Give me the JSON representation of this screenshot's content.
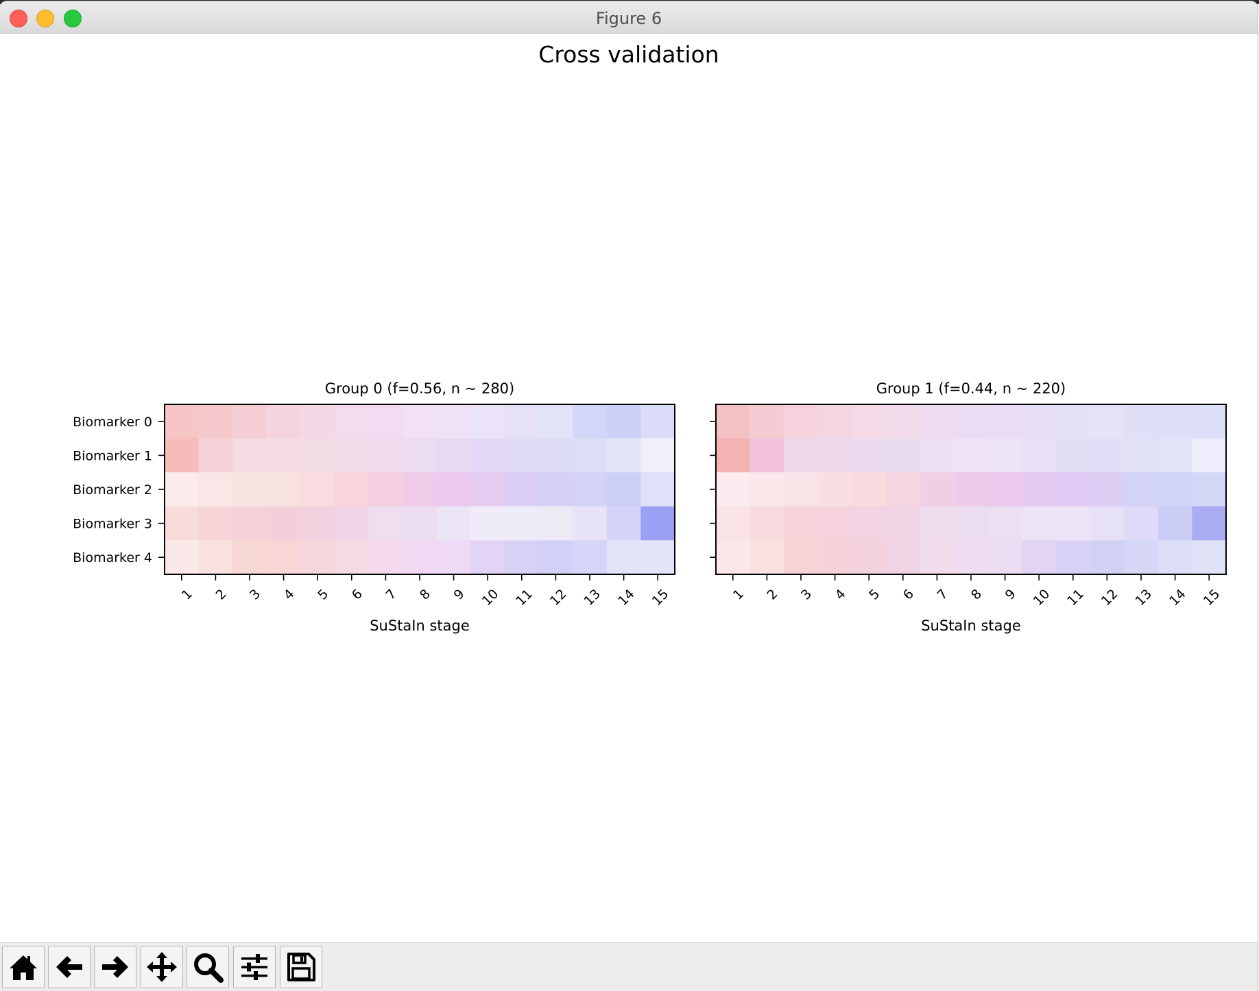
{
  "window": {
    "title": "Figure 6"
  },
  "figure": {
    "suptitle": "Cross validation"
  },
  "toolbar": {
    "items": [
      {
        "name": "home-button",
        "icon": "home-icon"
      },
      {
        "name": "back-button",
        "icon": "arrow-left-icon"
      },
      {
        "name": "forward-button",
        "icon": "arrow-right-icon"
      },
      {
        "name": "pan-button",
        "icon": "move-icon"
      },
      {
        "name": "zoom-button",
        "icon": "search-icon"
      },
      {
        "name": "configure-subplots-button",
        "icon": "sliders-icon"
      },
      {
        "name": "save-button",
        "icon": "floppy-disk-icon"
      }
    ]
  },
  "chart_data": [
    {
      "type": "heatmap",
      "title": "Group 0 (f=0.56, n$\\sim$280)",
      "title_display": "Group 0 (f=0.56, n ~ 280)",
      "xlabel": "SuStaIn stage",
      "ylabel": "",
      "x": [
        1,
        2,
        3,
        4,
        5,
        6,
        7,
        8,
        9,
        10,
        11,
        12,
        13,
        14,
        15
      ],
      "x_tick_labels": [
        "1",
        "2",
        "3",
        "4",
        "5",
        "6",
        "7",
        "8",
        "9",
        "10",
        "11",
        "12",
        "13",
        "14",
        "15"
      ],
      "y_tick_labels": [
        "Biomarker 0",
        "Biomarker 1",
        "Biomarker 2",
        "Biomarker 3",
        "Biomarker 4"
      ],
      "cell_colors": [
        [
          "#f6c6c6",
          "#f5c9cc",
          "#f5cdd5",
          "#f5d4e0",
          "#f5d8e6",
          "#f4dbef",
          "#f3dbf4",
          "#f2e0f6",
          "#efe2f7",
          "#ebe3f7",
          "#e7e2f8",
          "#e2e2f8",
          "#d4d6f7",
          "#cdd0f8",
          "#dadcf8"
        ],
        [
          "#f5bcba",
          "#f5d0d7",
          "#f5dbe2",
          "#f5dce4",
          "#f4dce5",
          "#f2dae6",
          "#efdbea",
          "#ecdcef",
          "#e6daf2",
          "#e2d8f5",
          "#e0daf7",
          "#dedbf6",
          "#dcdef6",
          "#e3e5f8",
          "#f0f0fd"
        ],
        [
          "#fbebec",
          "#f9e6e6",
          "#f9e2e2",
          "#f8e1e1",
          "#f8dce0",
          "#f7d5db",
          "#f3cfe0",
          "#f0cbe8",
          "#ecc9ef",
          "#e5cbf0",
          "#dbcef4",
          "#d6d0f4",
          "#d2d3f5",
          "#ccd0f6",
          "#dfe1f9"
        ],
        [
          "#f8dcdc",
          "#f6d4d8",
          "#f5d0d8",
          "#f4cfda",
          "#f2d1df",
          "#f0d4e6",
          "#efdeef",
          "#ecdef0",
          "#ebe5f5",
          "#efebf8",
          "#efecfa",
          "#eeebf7",
          "#e9e3f8",
          "#d5d3f8",
          "#9ba0f4"
        ],
        [
          "#fbe8e8",
          "#f9e1e0",
          "#f8d8d5",
          "#f7d6d5",
          "#f5d6dc",
          "#f4dbe3",
          "#f4daec",
          "#f2d8f2",
          "#eedaf7",
          "#e2d4f6",
          "#d6d1f5",
          "#d2d0f6",
          "#d5d6f7",
          "#e2e3f9",
          "#e3e4f9"
        ]
      ]
    },
    {
      "type": "heatmap",
      "title": "Group 1 (f=0.44, n$\\sim$220)",
      "title_display": "Group 1 (f=0.44, n ~ 220)",
      "xlabel": "SuStaIn stage",
      "ylabel": "",
      "x": [
        1,
        2,
        3,
        4,
        5,
        6,
        7,
        8,
        9,
        10,
        11,
        12,
        13,
        14,
        15
      ],
      "x_tick_labels": [
        "1",
        "2",
        "3",
        "4",
        "5",
        "6",
        "7",
        "8",
        "9",
        "10",
        "11",
        "12",
        "13",
        "14",
        "15"
      ],
      "y_tick_labels": [
        "Biomarker 0",
        "Biomarker 1",
        "Biomarker 2",
        "Biomarker 3",
        "Biomarker 4"
      ],
      "show_y_tick_labels": false,
      "cell_colors": [
        [
          "#f5c2c4",
          "#f5cbd3",
          "#f5d2dc",
          "#f4d6e2",
          "#f4dae6",
          "#f2dbea",
          "#efdcf2",
          "#ecdcf3",
          "#e9def5",
          "#e6dff7",
          "#e4e1f7",
          "#e4e3f7",
          "#dfe0f8",
          "#dfe0f8",
          "#dde0f8"
        ],
        [
          "#f4b3b3",
          "#f3c2de",
          "#f0d6ea",
          "#ecd7eb",
          "#ebd9ee",
          "#eadcf0",
          "#eee0f3",
          "#eee2f5",
          "#ede3f6",
          "#e8e1f6",
          "#e3def6",
          "#e1dff7",
          "#e0e0f7",
          "#e2e3f7",
          "#eeeefd"
        ],
        [
          "#fbebee",
          "#f9e7ea",
          "#f9e3e6",
          "#f8e0e2",
          "#f8dadf",
          "#f5d5e0",
          "#f1cee4",
          "#eecae9",
          "#ebc8ec",
          "#e5caf0",
          "#dfcbf3",
          "#dccdf3",
          "#d3d3f5",
          "#d1d4f6",
          "#d4d6f6"
        ],
        [
          "#fae3e4",
          "#f8dbdf",
          "#f7d2d9",
          "#f5d2dc",
          "#f3d3e1",
          "#f1d5e5",
          "#efdcec",
          "#ecdcef",
          "#ebdff2",
          "#ebe3f6",
          "#ebe3f6",
          "#e7e1f7",
          "#dfdaf7",
          "#cccdf7",
          "#a9acf3"
        ],
        [
          "#fbe7e7",
          "#f9e0e1",
          "#f7d4d8",
          "#f5d2d9",
          "#f3d1dd",
          "#f1d4e4",
          "#f2dcec",
          "#efdcf0",
          "#edddf3",
          "#e2d5f4",
          "#d9d1f5",
          "#d2d1f4",
          "#d6d7f6",
          "#dcdef7",
          "#e0e2f8"
        ]
      ]
    }
  ]
}
